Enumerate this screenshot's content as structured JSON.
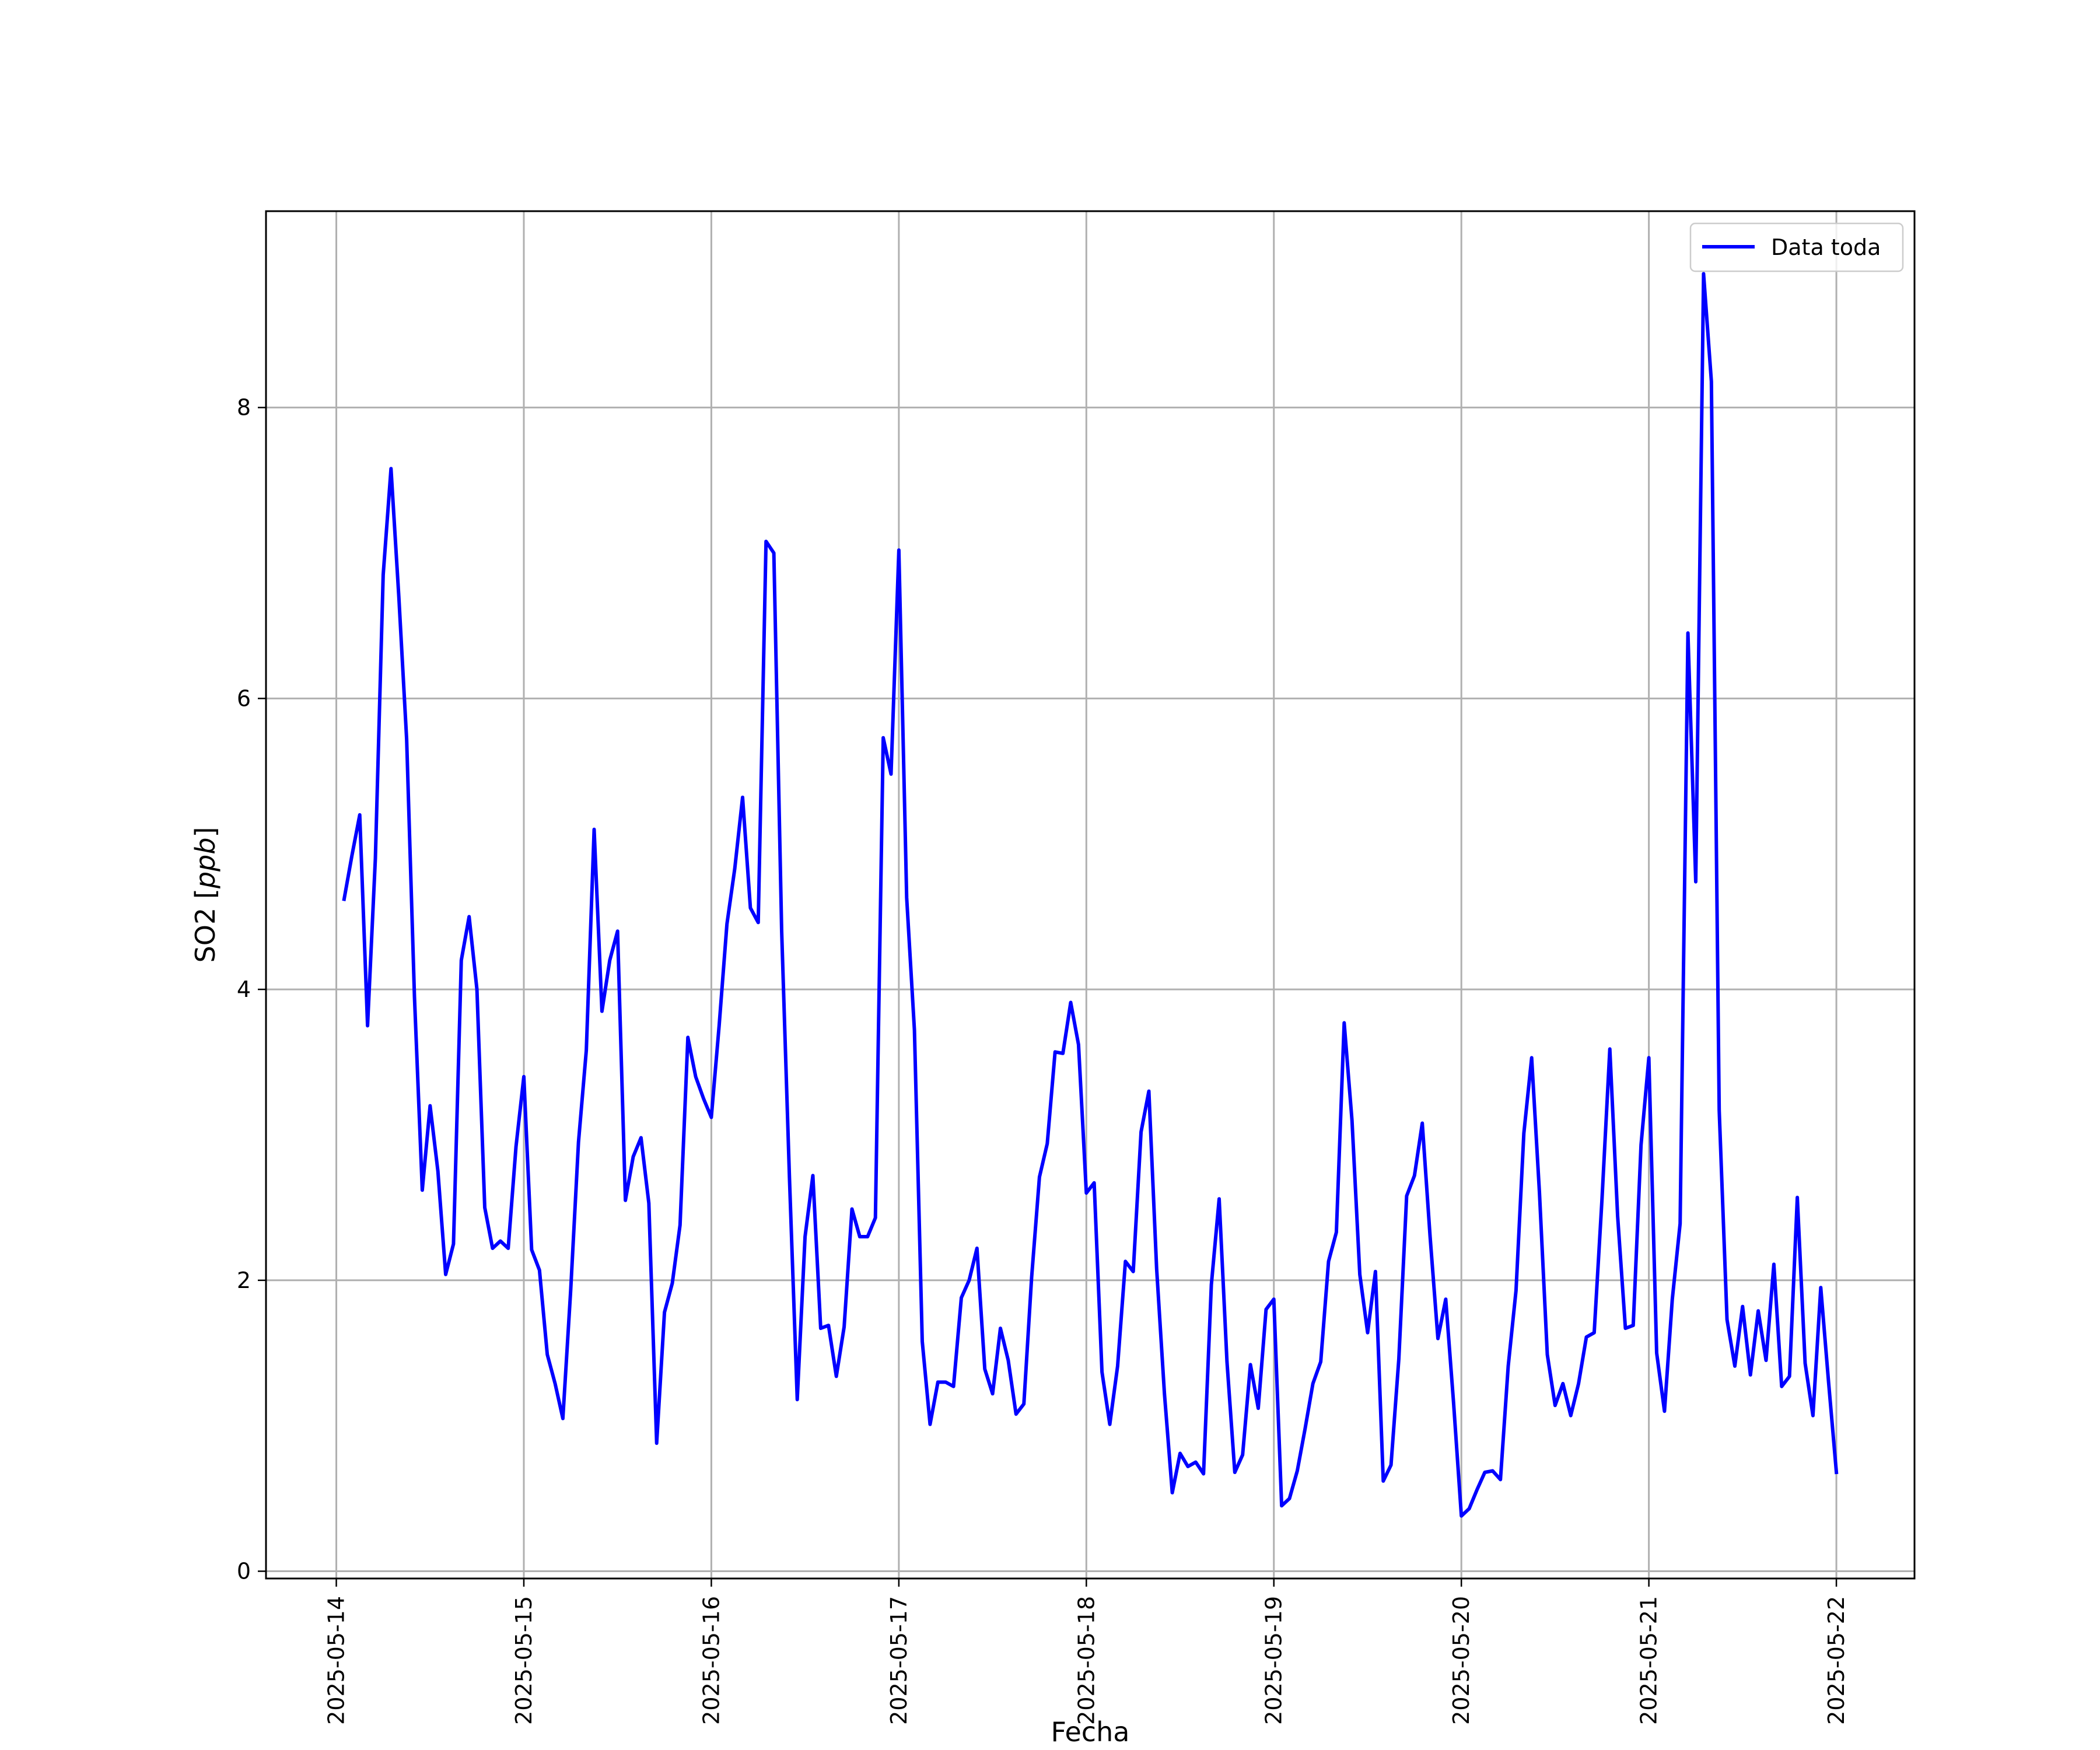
{
  "chart_data": {
    "type": "line",
    "title": "",
    "xlabel": "Fecha",
    "ylabel": "SO2 [ppb]",
    "ylabel_parts": {
      "prefix": "SO2 [",
      "unit": "ppb",
      "suffix": "]"
    },
    "x_tick_labels": [
      "2025-05-14",
      "2025-05-15",
      "2025-05-16",
      "2025-05-17",
      "2025-05-18",
      "2025-05-19",
      "2025-05-20",
      "2025-05-21",
      "2025-05-22"
    ],
    "y_ticks": [
      0,
      2,
      4,
      6,
      8
    ],
    "xlim": [
      "2025-05-13T15:00",
      "2025-05-22T10:00"
    ],
    "ylim": [
      -0.05,
      9.35
    ],
    "grid": true,
    "legend": {
      "position": "top-right",
      "entries": [
        "Data toda"
      ]
    },
    "series": [
      {
        "name": "Data toda",
        "color": "#0000ff",
        "x": [
          "2025-05-14T01:00",
          "2025-05-14T02:00",
          "2025-05-14T03:00",
          "2025-05-14T04:00",
          "2025-05-14T05:00",
          "2025-05-14T06:00",
          "2025-05-14T07:00",
          "2025-05-14T08:00",
          "2025-05-14T09:00",
          "2025-05-14T10:00",
          "2025-05-14T11:00",
          "2025-05-14T12:00",
          "2025-05-14T13:00",
          "2025-05-14T14:00",
          "2025-05-14T15:00",
          "2025-05-14T16:00",
          "2025-05-14T17:00",
          "2025-05-14T18:00",
          "2025-05-14T19:00",
          "2025-05-14T20:00",
          "2025-05-14T21:00",
          "2025-05-14T22:00",
          "2025-05-14T23:00",
          "2025-05-15T00:00",
          "2025-05-15T01:00",
          "2025-05-15T02:00",
          "2025-05-15T03:00",
          "2025-05-15T04:00",
          "2025-05-15T05:00",
          "2025-05-15T06:00",
          "2025-05-15T07:00",
          "2025-05-15T08:00",
          "2025-05-15T09:00",
          "2025-05-15T10:00",
          "2025-05-15T11:00",
          "2025-05-15T12:00",
          "2025-05-15T13:00",
          "2025-05-15T14:00",
          "2025-05-15T15:00",
          "2025-05-15T16:00",
          "2025-05-15T17:00",
          "2025-05-15T18:00",
          "2025-05-15T19:00",
          "2025-05-15T20:00",
          "2025-05-15T21:00",
          "2025-05-15T22:00",
          "2025-05-15T23:00",
          "2025-05-16T00:00",
          "2025-05-16T01:00",
          "2025-05-16T02:00",
          "2025-05-16T03:00",
          "2025-05-16T04:00",
          "2025-05-16T05:00",
          "2025-05-16T06:00",
          "2025-05-16T07:00",
          "2025-05-16T08:00",
          "2025-05-16T09:00",
          "2025-05-16T10:00",
          "2025-05-16T11:00",
          "2025-05-16T12:00",
          "2025-05-16T13:00",
          "2025-05-16T14:00",
          "2025-05-16T15:00",
          "2025-05-16T16:00",
          "2025-05-16T17:00",
          "2025-05-16T18:00",
          "2025-05-16T19:00",
          "2025-05-16T20:00",
          "2025-05-16T21:00",
          "2025-05-16T22:00",
          "2025-05-16T23:00",
          "2025-05-17T00:00",
          "2025-05-17T01:00",
          "2025-05-17T02:00",
          "2025-05-17T03:00",
          "2025-05-17T04:00",
          "2025-05-17T05:00",
          "2025-05-17T06:00",
          "2025-05-17T07:00",
          "2025-05-17T08:00",
          "2025-05-17T09:00",
          "2025-05-17T10:00",
          "2025-05-17T11:00",
          "2025-05-17T12:00",
          "2025-05-17T13:00",
          "2025-05-17T14:00",
          "2025-05-17T15:00",
          "2025-05-17T16:00",
          "2025-05-17T17:00",
          "2025-05-17T18:00",
          "2025-05-17T19:00",
          "2025-05-17T20:00",
          "2025-05-17T21:00",
          "2025-05-17T22:00",
          "2025-05-17T23:00",
          "2025-05-18T00:00",
          "2025-05-18T01:00",
          "2025-05-18T02:00",
          "2025-05-18T03:00",
          "2025-05-18T04:00",
          "2025-05-18T05:00",
          "2025-05-18T06:00",
          "2025-05-18T07:00",
          "2025-05-18T08:00",
          "2025-05-18T09:00",
          "2025-05-18T10:00",
          "2025-05-18T11:00",
          "2025-05-18T12:00",
          "2025-05-18T13:00",
          "2025-05-18T14:00",
          "2025-05-18T15:00",
          "2025-05-18T16:00",
          "2025-05-18T17:00",
          "2025-05-18T18:00",
          "2025-05-18T19:00",
          "2025-05-18T20:00",
          "2025-05-18T21:00",
          "2025-05-18T22:00",
          "2025-05-18T23:00",
          "2025-05-19T00:00",
          "2025-05-19T01:00",
          "2025-05-19T02:00",
          "2025-05-19T03:00",
          "2025-05-19T04:00",
          "2025-05-19T05:00",
          "2025-05-19T06:00",
          "2025-05-19T07:00",
          "2025-05-19T08:00",
          "2025-05-19T09:00",
          "2025-05-19T10:00",
          "2025-05-19T11:00",
          "2025-05-19T12:00",
          "2025-05-19T13:00",
          "2025-05-19T14:00",
          "2025-05-19T15:00",
          "2025-05-19T16:00",
          "2025-05-19T17:00",
          "2025-05-19T18:00",
          "2025-05-19T19:00",
          "2025-05-19T20:00",
          "2025-05-19T21:00",
          "2025-05-19T22:00",
          "2025-05-19T23:00",
          "2025-05-20T00:00",
          "2025-05-20T01:00",
          "2025-05-20T02:00",
          "2025-05-20T03:00",
          "2025-05-20T04:00",
          "2025-05-20T05:00",
          "2025-05-20T06:00",
          "2025-05-20T07:00",
          "2025-05-20T08:00",
          "2025-05-20T09:00",
          "2025-05-20T10:00",
          "2025-05-20T11:00",
          "2025-05-20T12:00",
          "2025-05-20T13:00",
          "2025-05-20T14:00",
          "2025-05-20T15:00",
          "2025-05-20T16:00",
          "2025-05-20T17:00",
          "2025-05-20T18:00",
          "2025-05-20T19:00",
          "2025-05-20T20:00",
          "2025-05-20T21:00",
          "2025-05-20T22:00",
          "2025-05-20T23:00",
          "2025-05-21T00:00",
          "2025-05-21T01:00",
          "2025-05-21T02:00",
          "2025-05-21T03:00",
          "2025-05-21T04:00",
          "2025-05-21T05:00",
          "2025-05-21T06:00",
          "2025-05-21T07:00",
          "2025-05-21T08:00",
          "2025-05-21T09:00",
          "2025-05-21T10:00",
          "2025-05-21T11:00",
          "2025-05-21T12:00",
          "2025-05-21T13:00",
          "2025-05-21T14:00",
          "2025-05-21T15:00",
          "2025-05-21T16:00",
          "2025-05-21T17:00",
          "2025-05-21T18:00",
          "2025-05-21T19:00",
          "2025-05-21T20:00",
          "2025-05-21T21:00",
          "2025-05-21T22:00",
          "2025-05-21T23:00",
          "2025-05-22T00:00"
        ],
        "values": [
          4.62,
          4.92,
          5.2,
          3.75,
          4.9,
          6.85,
          7.58,
          6.7,
          5.72,
          3.95,
          2.62,
          3.2,
          2.75,
          2.04,
          2.25,
          4.2,
          4.5,
          4.0,
          2.5,
          2.22,
          2.27,
          2.22,
          2.92,
          3.4,
          2.21,
          2.07,
          1.49,
          1.29,
          1.05,
          1.93,
          2.95,
          3.58,
          5.1,
          3.85,
          4.2,
          4.4,
          2.55,
          2.85,
          2.98,
          2.53,
          0.88,
          1.78,
          1.98,
          2.38,
          3.67,
          3.4,
          3.25,
          3.12,
          3.75,
          4.45,
          4.83,
          5.32,
          4.56,
          4.46,
          7.08,
          7.0,
          4.4,
          2.7,
          1.18,
          2.3,
          2.72,
          1.67,
          1.69,
          1.34,
          1.68,
          2.49,
          2.3,
          2.3,
          2.43,
          5.73,
          5.48,
          7.02,
          4.63,
          3.72,
          1.58,
          1.01,
          1.3,
          1.3,
          1.27,
          1.88,
          2.0,
          2.22,
          1.39,
          1.22,
          1.67,
          1.45,
          1.08,
          1.15,
          2.02,
          2.71,
          2.94,
          3.57,
          3.56,
          3.91,
          3.62,
          2.6,
          2.67,
          1.37,
          1.01,
          1.41,
          2.13,
          2.06,
          3.02,
          3.3,
          2.08,
          1.22,
          0.54,
          0.81,
          0.72,
          0.75,
          0.67,
          1.97,
          2.56,
          1.44,
          0.68,
          0.8,
          1.42,
          1.12,
          1.8,
          1.87,
          0.45,
          0.5,
          0.69,
          0.98,
          1.29,
          1.44,
          2.13,
          2.33,
          3.77,
          3.1,
          2.04,
          1.64,
          2.06,
          0.62,
          0.73,
          1.46,
          2.58,
          2.72,
          3.08,
          2.3,
          1.6,
          1.87,
          1.16,
          0.38,
          0.43,
          0.56,
          0.68,
          0.69,
          0.63,
          1.41,
          1.93,
          3.01,
          3.53,
          2.6,
          1.49,
          1.14,
          1.29,
          1.07,
          1.29,
          1.61,
          1.64,
          2.56,
          3.59,
          2.44,
          1.67,
          1.69,
          2.93,
          3.53,
          1.5,
          1.1,
          1.87,
          2.39,
          6.45,
          4.74,
          8.92,
          8.18,
          3.17,
          1.73,
          1.41,
          1.82,
          1.35,
          1.79,
          1.45,
          2.11,
          1.27,
          1.34,
          2.57,
          1.43,
          1.07,
          1.95,
          1.3,
          0.68
        ]
      }
    ]
  }
}
